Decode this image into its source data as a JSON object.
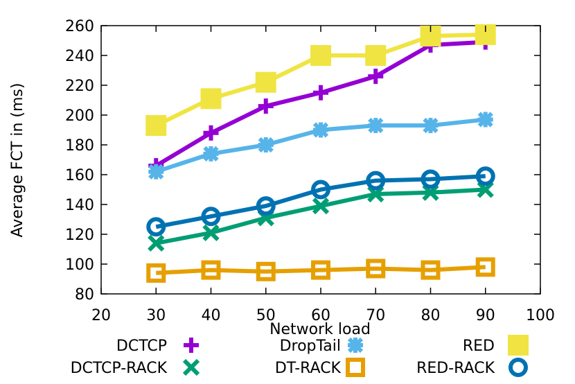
{
  "chart_data": {
    "type": "line",
    "xlabel": "Network load",
    "ylabel": "Average FCT in (ms)",
    "xlim": [
      20,
      100
    ],
    "ylim": [
      80,
      260
    ],
    "xticks": [
      "20",
      "30",
      "40",
      "50",
      "60",
      "70",
      "80",
      "90",
      "100"
    ],
    "yticks": [
      "80",
      "100",
      "120",
      "140",
      "160",
      "180",
      "200",
      "220",
      "240",
      "260"
    ],
    "x": [
      30,
      40,
      50,
      60,
      70,
      80,
      90
    ],
    "grid": false,
    "legend_position": "bottom",
    "series": [
      {
        "name": "DCTCP",
        "color": "#9400d3",
        "marker": "plus",
        "values": [
          166,
          188,
          206,
          215,
          226,
          247,
          249
        ]
      },
      {
        "name": "DropTail",
        "color": "#56b4e9",
        "marker": "star",
        "values": [
          162,
          174,
          180,
          190,
          193,
          193,
          197
        ]
      },
      {
        "name": "RED",
        "color": "#f0e442",
        "marker": "filled-square",
        "values": [
          193,
          211,
          222,
          240,
          240,
          253,
          254
        ]
      },
      {
        "name": "DCTCP-RACK",
        "color": "#009e73",
        "marker": "x",
        "values": [
          114,
          121,
          131,
          139,
          147,
          148,
          150
        ]
      },
      {
        "name": "DT-RACK",
        "color": "#e69f00",
        "marker": "open-square",
        "values": [
          94,
          96,
          95,
          96,
          97,
          96,
          98
        ]
      },
      {
        "name": "RED-RACK",
        "color": "#0072b2",
        "marker": "open-circle",
        "values": [
          125,
          132,
          139,
          150,
          156,
          157,
          159
        ]
      }
    ]
  }
}
